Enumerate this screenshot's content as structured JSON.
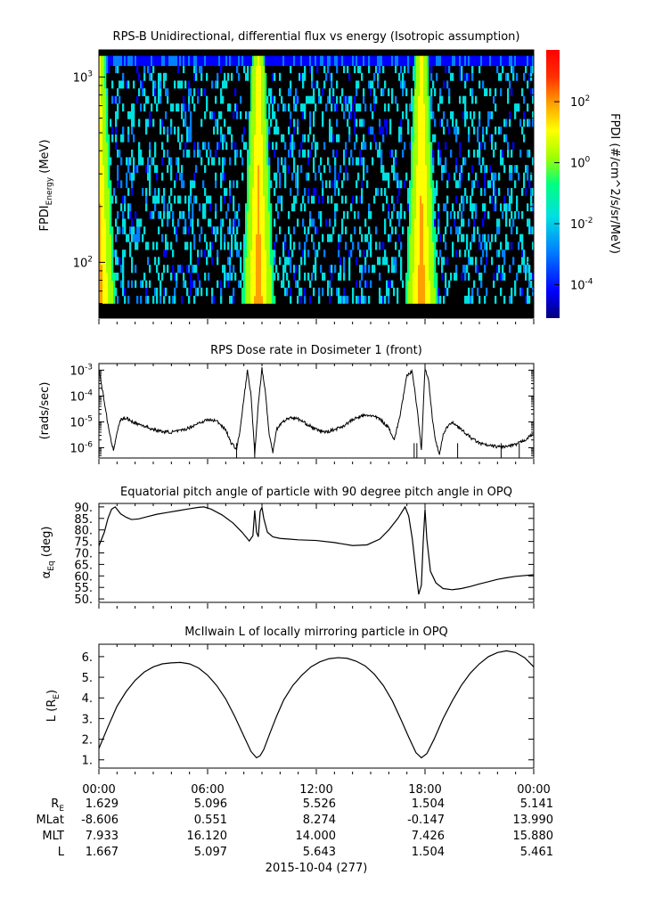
{
  "colors": {
    "background": "#ffffff",
    "axis": "#000000",
    "trace": "#000000",
    "spectrogram_background": "#000000",
    "colorbar_stops": [
      "#00007a",
      "#0000ff",
      "#0080ff",
      "#00e0e0",
      "#00ff80",
      "#a0ff00",
      "#ffff00",
      "#ffa000",
      "#ff3000",
      "#ff0000"
    ]
  },
  "chart_data": [
    {
      "id": "spectrogram",
      "type": "heatmap",
      "title": "RPS-B  Unidirectional, differential flux vs energy (Isotropic assumption)",
      "ylabel_main": "FPDI",
      "ylabel_sub": "Energy",
      "ylabel_unit": " (MeV)",
      "yscale": "log",
      "ylim": [
        50,
        1400
      ],
      "y_ticks": [
        {
          "value": 100,
          "base": "10",
          "exp": "2"
        },
        {
          "value": 1000,
          "base": "10",
          "exp": "3"
        }
      ],
      "xlim": [
        0,
        24
      ],
      "energy_bins_mev": [
        60,
        66,
        73,
        80,
        88,
        97,
        107,
        117,
        129,
        142,
        156,
        172,
        189,
        208,
        229,
        252,
        277,
        305,
        335,
        369,
        406,
        446,
        491,
        540,
        594,
        653,
        719,
        790,
        869,
        956,
        1052,
        1150,
        1300
      ],
      "flux_peak_hours": [
        0.0,
        8.8,
        17.8
      ],
      "colorbar": {
        "label": "FPDI (#/cm^2/s/sr/MeV)",
        "scale": "log",
        "range": [
          8e-06,
          5000
        ],
        "ticks": [
          {
            "value": 0.0001,
            "base": "10",
            "exp": "-4"
          },
          {
            "value": 0.01,
            "base": "10",
            "exp": "-2"
          },
          {
            "value": 1,
            "base": "10",
            "exp": "0"
          },
          {
            "value": 100,
            "base": "10",
            "exp": "2"
          }
        ]
      }
    },
    {
      "id": "dose",
      "type": "line",
      "title": "RPS  Dose rate in Dosimeter 1 (front)",
      "ylabel": "(rads/sec)",
      "yscale": "log",
      "ylim": [
        4e-07,
        0.0018
      ],
      "y_ticks": [
        {
          "value": 1e-06,
          "base": "10",
          "exp": "-6"
        },
        {
          "value": 1e-05,
          "base": "10",
          "exp": "-5"
        },
        {
          "value": 0.0001,
          "base": "10",
          "exp": "-4"
        },
        {
          "value": 0.001,
          "base": "10",
          "exp": "-3"
        }
      ],
      "xlim": [
        0,
        24
      ],
      "x": [
        0,
        0.3,
        0.6,
        0.8,
        1.0,
        1.2,
        1.5,
        2.0,
        2.5,
        3.0,
        3.5,
        4.0,
        4.5,
        5.0,
        5.5,
        6.0,
        6.5,
        7.0,
        7.3,
        7.6,
        7.8,
        8.0,
        8.2,
        8.4,
        8.6,
        8.8,
        9.0,
        9.2,
        9.4,
        9.6,
        9.8,
        10.0,
        10.3,
        10.6,
        11.0,
        11.5,
        12.0,
        12.5,
        13.0,
        13.5,
        14.0,
        14.5,
        15.0,
        15.5,
        16.0,
        16.3,
        16.6,
        17.0,
        17.3,
        17.6,
        17.8,
        18.0,
        18.2,
        18.4,
        18.6,
        18.8,
        19.0,
        19.3,
        19.6,
        20.0,
        20.5,
        21.0,
        21.5,
        22.0,
        22.5,
        23.0,
        23.5,
        24.0
      ],
      "y": [
        0.0011,
        6e-05,
        3e-06,
        8e-07,
        4e-06,
        1.2e-05,
        1.4e-05,
        9e-06,
        7e-06,
        5e-06,
        4.2e-06,
        4e-06,
        4.5e-06,
        6e-06,
        9e-06,
        1.2e-05,
        1.1e-05,
        5e-06,
        1.5e-06,
        9e-07,
        5e-06,
        8e-05,
        0.00095,
        0.0001,
        6e-07,
        5e-05,
        0.0012,
        0.00012,
        3e-06,
        7e-07,
        5e-06,
        8e-06,
        1.2e-05,
        1.5e-05,
        1.3e-05,
        8e-06,
        5e-06,
        4e-06,
        5e-06,
        7e-06,
        1.2e-05,
        1.7e-05,
        1.8e-05,
        1.3e-05,
        6e-06,
        2e-06,
        1.5e-05,
        0.0006,
        0.0009,
        2e-05,
        8e-07,
        0.0012,
        0.0004,
        1.5e-05,
        1.5e-06,
        6e-07,
        3e-06,
        8e-06,
        9e-06,
        5e-06,
        2.5e-06,
        1.5e-06,
        1.2e-06,
        1.1e-06,
        1.1e-06,
        1.3e-06,
        2e-06,
        3.5e-06
      ],
      "drop_hours": [
        7.6,
        8.6,
        17.4,
        17.55,
        19.8,
        22.2,
        23.2
      ]
    },
    {
      "id": "pitch",
      "type": "line",
      "title": "Equatorial pitch angle of particle with 90 degree pitch angle in OPQ",
      "ylabel_main": "α",
      "ylabel_sub": "Eq",
      "ylabel_unit": " (deg)",
      "ylim": [
        48.5,
        91.5
      ],
      "y_ticks": [
        50,
        55,
        60,
        65,
        70,
        75,
        80,
        85,
        90
      ],
      "xlim": [
        0,
        24
      ],
      "x": [
        0,
        0.3,
        0.5,
        0.7,
        0.9,
        1.2,
        1.5,
        1.8,
        2.2,
        2.7,
        3.2,
        3.8,
        4.4,
        5.0,
        5.5,
        5.8,
        6.2,
        6.8,
        7.4,
        7.9,
        8.3,
        8.5,
        8.6,
        8.7,
        8.8,
        8.9,
        9.0,
        9.1,
        9.3,
        9.6,
        10.0,
        10.5,
        11.0,
        12.0,
        13.0,
        14.0,
        14.8,
        15.5,
        16.0,
        16.5,
        16.9,
        17.1,
        17.3,
        17.5,
        17.65,
        17.8,
        17.9,
        18.0,
        18.1,
        18.3,
        18.6,
        19.0,
        19.5,
        20.0,
        20.5,
        21.0,
        21.5,
        22.0,
        22.5,
        23.0,
        24.0
      ],
      "y": [
        73,
        79,
        85,
        89,
        90,
        87,
        85.5,
        84.5,
        84.8,
        85.8,
        86.8,
        87.6,
        88.4,
        89.2,
        89.8,
        90,
        89,
        86.5,
        83,
        79,
        75.2,
        77.5,
        88.5,
        79,
        77,
        88,
        89.8,
        85,
        79,
        77,
        76.3,
        76,
        75.7,
        75.4,
        74.5,
        73.2,
        73.5,
        76,
        80,
        85,
        90,
        86,
        76,
        62,
        52,
        56,
        75,
        89,
        76,
        62,
        57,
        54.5,
        54,
        54.5,
        55.4,
        56.5,
        57.5,
        58.5,
        59.2,
        59.8,
        60.5
      ]
    },
    {
      "id": "lshell",
      "type": "line",
      "title": "McIlwain L of locally mirroring particle in OPQ",
      "ylabel_main": "L (R",
      "ylabel_sub": "E",
      "ylabel_unit": ")",
      "ylim": [
        0.6,
        6.6
      ],
      "y_ticks": [
        1,
        2,
        3,
        4,
        5,
        6
      ],
      "xlim": [
        0,
        24
      ],
      "x": [
        0,
        0.5,
        1,
        1.5,
        2,
        2.5,
        3,
        3.5,
        4,
        4.5,
        5,
        5.5,
        6,
        6.5,
        7,
        7.5,
        8,
        8.4,
        8.7,
        8.9,
        9.1,
        9.4,
        9.8,
        10.2,
        10.7,
        11.2,
        11.7,
        12.2,
        12.7,
        13.2,
        13.7,
        14.2,
        14.7,
        15.2,
        15.7,
        16.2,
        16.7,
        17.1,
        17.5,
        17.8,
        18.1,
        18.5,
        19,
        19.5,
        20,
        20.5,
        21,
        21.5,
        22,
        22.5,
        23,
        23.5,
        24
      ],
      "y": [
        1.55,
        2.6,
        3.6,
        4.3,
        4.85,
        5.25,
        5.5,
        5.65,
        5.7,
        5.72,
        5.65,
        5.45,
        5.1,
        4.6,
        3.95,
        3.1,
        2.15,
        1.4,
        1.1,
        1.2,
        1.5,
        2.2,
        3.1,
        3.9,
        4.6,
        5.1,
        5.5,
        5.75,
        5.9,
        5.95,
        5.92,
        5.78,
        5.55,
        5.15,
        4.6,
        3.85,
        2.9,
        2.1,
        1.35,
        1.1,
        1.3,
        2.0,
        3.0,
        3.85,
        4.6,
        5.2,
        5.65,
        6.0,
        6.2,
        6.28,
        6.2,
        5.95,
        5.5
      ]
    }
  ],
  "time_axis": {
    "ticks": [
      {
        "hour": 0,
        "label": "00:00"
      },
      {
        "hour": 6,
        "label": "06:00"
      },
      {
        "hour": 12,
        "label": "12:00"
      },
      {
        "hour": 18,
        "label": "18:00"
      },
      {
        "hour": 24,
        "label": "00:00"
      }
    ],
    "rows": [
      {
        "label_main": "R",
        "label_sub": "E",
        "values": [
          "1.629",
          "5.096",
          "5.526",
          "1.504",
          "5.141"
        ]
      },
      {
        "label_main": "MLat",
        "label_sub": "",
        "values": [
          "-8.606",
          "0.551",
          "8.274",
          "-0.147",
          "13.990"
        ]
      },
      {
        "label_main": "MLT",
        "label_sub": "",
        "values": [
          "7.933",
          "16.120",
          "14.000",
          "7.426",
          "15.880"
        ]
      },
      {
        "label_main": "L",
        "label_sub": "",
        "values": [
          "1.667",
          "5.097",
          "5.643",
          "1.504",
          "5.461"
        ]
      }
    ],
    "date": "2015-10-04 (277)"
  }
}
